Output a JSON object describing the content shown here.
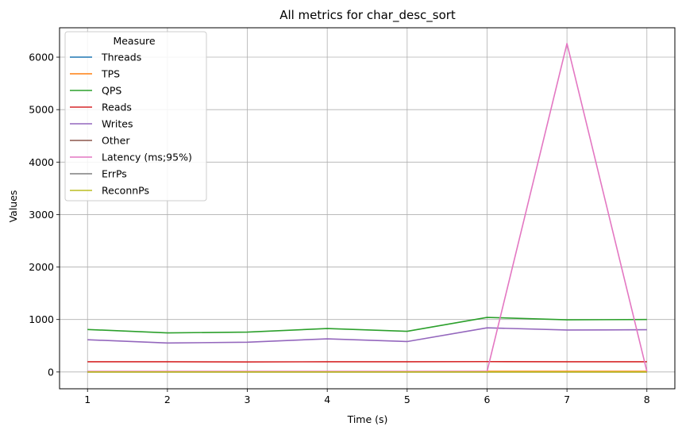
{
  "chart_data": {
    "type": "line",
    "title": "All metrics for char_desc_sort",
    "xlabel": "Time (s)",
    "ylabel": "Values",
    "x": [
      1,
      2,
      3,
      4,
      5,
      6,
      7,
      8
    ],
    "xlim": [
      0.65,
      8.35
    ],
    "ylim": [
      -320,
      6560
    ],
    "xticks": [
      1,
      2,
      3,
      4,
      5,
      6,
      7,
      8
    ],
    "yticks": [
      0,
      1000,
      2000,
      3000,
      4000,
      5000,
      6000
    ],
    "grid": true,
    "legend_title": "Measure",
    "legend_position": "top-left",
    "series": [
      {
        "name": "Threads",
        "color": "#1f77b4",
        "values": [
          8,
          8,
          8,
          8,
          8,
          8,
          8,
          8
        ]
      },
      {
        "name": "TPS",
        "color": "#ff7f0e",
        "values": [
          10,
          10,
          10,
          10,
          10,
          12,
          12,
          12
        ]
      },
      {
        "name": "QPS",
        "color": "#2ca02c",
        "values": [
          810,
          745,
          760,
          828,
          775,
          1040,
          995,
          1000
        ]
      },
      {
        "name": "Reads",
        "color": "#d62728",
        "values": [
          195,
          195,
          192,
          195,
          195,
          198,
          195,
          195
        ]
      },
      {
        "name": "Writes",
        "color": "#9467bd",
        "values": [
          615,
          552,
          568,
          632,
          580,
          842,
          800,
          805
        ]
      },
      {
        "name": "Other",
        "color": "#8c564b",
        "values": [
          0,
          0,
          0,
          0,
          0,
          0,
          0,
          0
        ]
      },
      {
        "name": "Latency (ms;95%)",
        "color": "#e377c2",
        "values": [
          10,
          10,
          10,
          10,
          10,
          12,
          6260,
          12
        ]
      },
      {
        "name": "ErrPs",
        "color": "#7f7f7f",
        "values": [
          0,
          0,
          0,
          0,
          0,
          0,
          0,
          0
        ]
      },
      {
        "name": "ReconnPs",
        "color": "#bcbd22",
        "values": [
          0,
          0,
          0,
          0,
          0,
          0,
          0,
          0
        ]
      }
    ]
  }
}
